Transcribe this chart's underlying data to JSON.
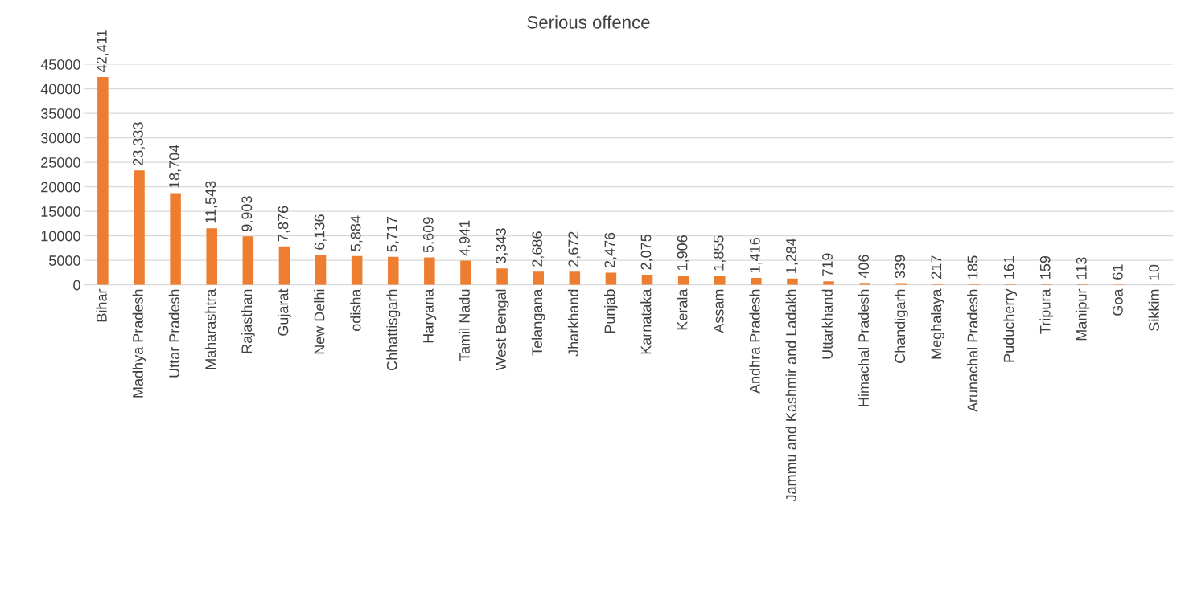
{
  "chart_data": {
    "type": "bar",
    "title": "Serious offence",
    "categories": [
      "Bihar",
      "Madhya Pradesh",
      "Uttar Pradesh",
      "Maharashtra",
      "Rajasthan",
      "Gujarat",
      "New Delhi",
      "odisha",
      "Chhattisgarh",
      "Haryana",
      "Tamil Nadu",
      "West Bengal",
      "Telangana",
      "Jharkhand",
      "Punjab",
      "Karnataka",
      "Kerala",
      "Assam",
      "Andhra Pradesh",
      "Jammu and Kashmir and Ladakh",
      "Uttarkhand",
      "Himachal Pradesh",
      "Chandigarh",
      "Meghalaya",
      "Arunachal Pradesh",
      "Puducherry",
      "Tripura",
      "Manipur",
      "Goa",
      "Sikkim"
    ],
    "values": [
      42411,
      23333,
      18704,
      11543,
      9903,
      7876,
      6136,
      5884,
      5717,
      5609,
      4941,
      3343,
      2686,
      2672,
      2476,
      2075,
      1906,
      1855,
      1416,
      1284,
      719,
      406,
      339,
      217,
      185,
      161,
      159,
      113,
      61,
      10
    ],
    "value_labels": [
      "42,411",
      "23,333",
      "18,704",
      "11,543",
      "9,903",
      "7,876",
      "6,136",
      "5,884",
      "5,717",
      "5,609",
      "4,941",
      "3,343",
      "2,686",
      "2,672",
      "2,476",
      "2,075",
      "1,906",
      "1,855",
      "1,416",
      "1,284",
      "719",
      "406",
      "339",
      "217",
      "185",
      "161",
      "159",
      "113",
      "61",
      "10"
    ],
    "color": "#ed7d31",
    "ylim": [
      0,
      45000
    ],
    "yticks": [
      0,
      5000,
      10000,
      15000,
      20000,
      25000,
      30000,
      35000,
      40000,
      45000
    ],
    "grid": "y"
  }
}
